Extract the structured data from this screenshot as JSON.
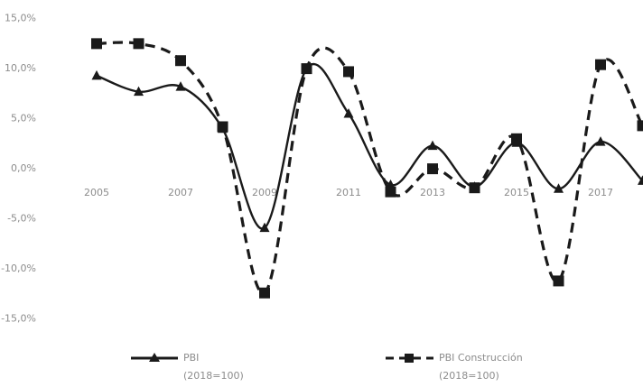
{
  "chart_data": {
    "type": "line",
    "title": "",
    "xlabel": "",
    "ylabel": "",
    "x": [
      2005,
      2006,
      2007,
      2008,
      2009,
      2010,
      2011,
      2012,
      2013,
      2014,
      2015,
      2016,
      2017,
      2018
    ],
    "x_tick_labels": [
      "2005",
      "2007",
      "2009",
      "2011",
      "2013",
      "2015",
      "2017"
    ],
    "y_tick_labels": [
      "15,0%",
      "10,0%",
      "5,0%",
      "0,0%",
      "-5,0%",
      "-10,0%",
      "-15,0%"
    ],
    "ylim": [
      -15,
      15
    ],
    "grid": false,
    "legend_position": "bottom",
    "series": [
      {
        "name": "PBI",
        "name_line2": "(2018=100)",
        "values": [
          9.2,
          7.6,
          8.1,
          3.9,
          -6.0,
          9.9,
          5.4,
          -1.7,
          2.2,
          -1.9,
          2.5,
          -2.1,
          2.6,
          -1.3
        ],
        "color": "#1a1a1a",
        "line_style": "solid",
        "marker": "triangle"
      },
      {
        "name": "PBI Construcción",
        "name_line2": "(2018=100)",
        "values": [
          12.4,
          12.4,
          10.7,
          4.1,
          -12.5,
          9.9,
          9.6,
          -2.4,
          -0.1,
          -2.0,
          2.9,
          -11.3,
          10.3,
          4.2
        ],
        "color": "#1a1a1a",
        "line_style": "dashed",
        "marker": "square"
      }
    ]
  }
}
